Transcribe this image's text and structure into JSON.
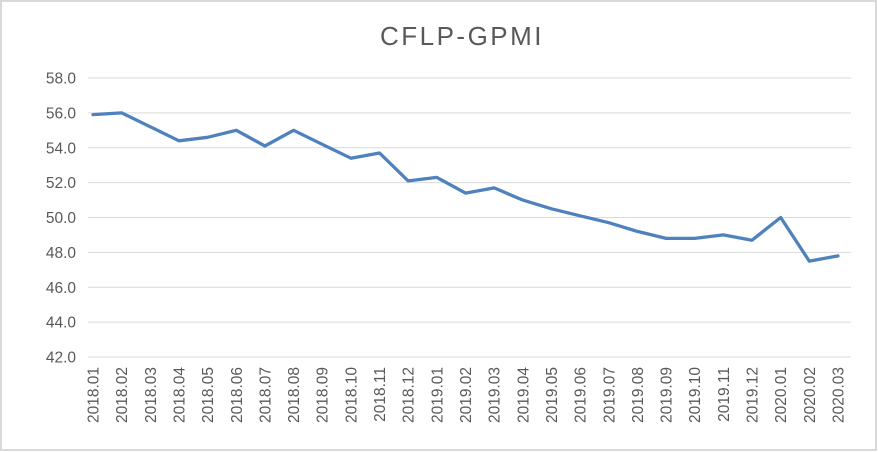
{
  "chart": {
    "title": "CFLP-GPMI"
  },
  "chart_data": {
    "type": "line",
    "title": "CFLP-GPMI",
    "categories": [
      "2018.01",
      "2018.02",
      "2018.03",
      "2018.04",
      "2018.05",
      "2018.06",
      "2018.07",
      "2018.08",
      "2018.09",
      "2018.10",
      "2018.11",
      "2018.12",
      "2019.01",
      "2019.02",
      "2019.03",
      "2019.04",
      "2019.05",
      "2019.06",
      "2019.07",
      "2019.08",
      "2019.09",
      "2019.10",
      "2019.11",
      "2019.12",
      "2020.01",
      "2020.02",
      "2020.03"
    ],
    "values": [
      55.9,
      56.0,
      55.2,
      54.4,
      54.6,
      55.0,
      54.1,
      55.0,
      54.2,
      53.4,
      53.7,
      52.1,
      52.3,
      51.4,
      51.7,
      51.0,
      50.5,
      50.1,
      49.7,
      49.2,
      48.8,
      48.8,
      49.0,
      48.7,
      50.0,
      47.5,
      47.8
    ],
    "xlabel": "",
    "ylabel": "",
    "ylim": [
      42.0,
      58.0
    ],
    "ytick_step": 2.0,
    "ytick_labels": [
      "58.0",
      "56.0",
      "54.0",
      "52.0",
      "50.0",
      "48.0",
      "46.0",
      "44.0",
      "42.0"
    ],
    "grid": true,
    "legend_position": "none",
    "colors": {
      "line": "#4F81BD",
      "gridline": "#D9D9D9",
      "text": "#595959",
      "border": "#D9D9D9",
      "background": "#FFFFFF"
    }
  }
}
